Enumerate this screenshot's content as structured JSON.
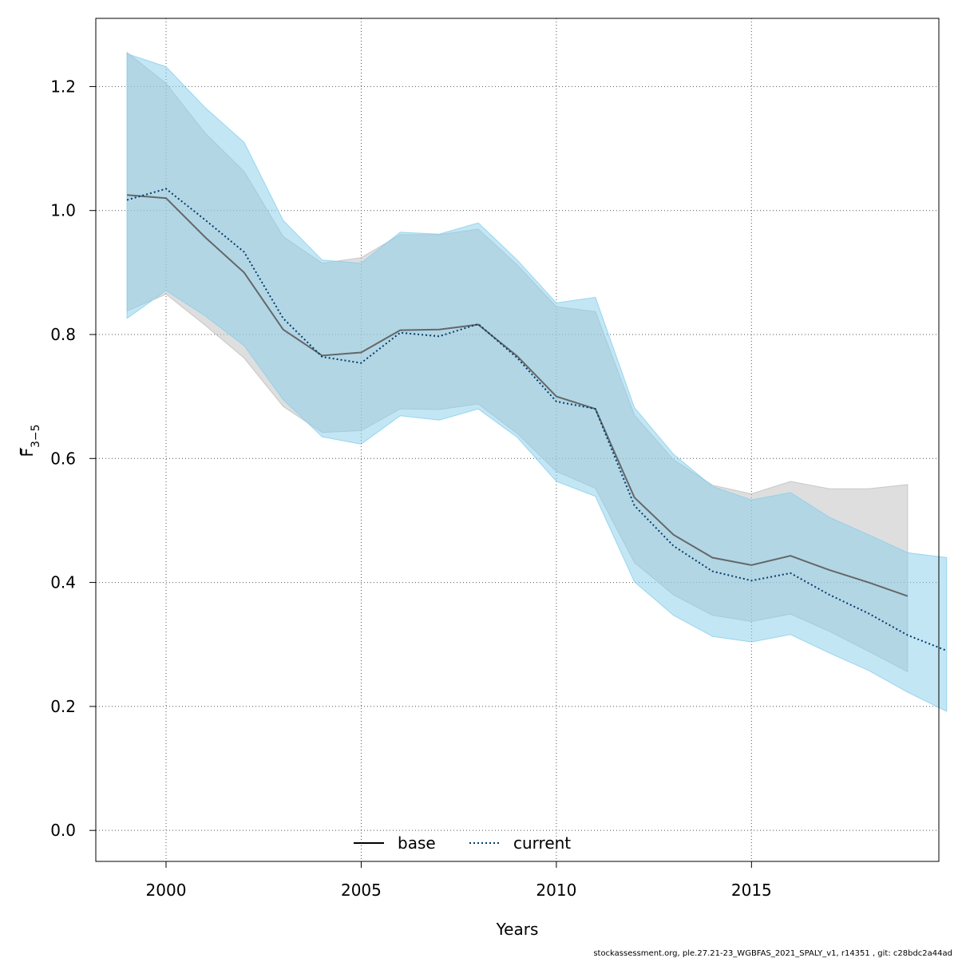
{
  "chart_data": {
    "type": "line",
    "title": "",
    "xlabel": "Years",
    "ylabel": "F",
    "ylabel_bar": "_",
    "ylabel_sub": "3−5",
    "xlim": [
      1998.2,
      2019.8
    ],
    "ylim": [
      -0.05,
      1.31
    ],
    "xticks": [
      2000,
      2005,
      2010,
      2015
    ],
    "yticks": [
      0.0,
      0.2,
      0.4,
      0.6,
      0.8,
      1.0,
      1.2
    ],
    "ytick_labels": [
      "0.0",
      "0.2",
      "0.4",
      "0.6",
      "0.8",
      "1.0",
      "1.2"
    ],
    "grid": true,
    "legend_position": "bottom-center",
    "series": [
      {
        "name": "base",
        "line_style": "solid",
        "line_color": "#555555",
        "band_color": "#bebebe",
        "x": [
          1999,
          2000,
          2001,
          2002,
          2003,
          2004,
          2005,
          2006,
          2007,
          2008,
          2009,
          2010,
          2011,
          2012,
          2013,
          2014,
          2015,
          2016,
          2017,
          2018,
          2019
        ],
        "values": [
          1.025,
          1.02,
          0.957,
          0.9,
          0.808,
          0.766,
          0.771,
          0.807,
          0.808,
          0.816,
          0.765,
          0.7,
          0.68,
          0.537,
          0.477,
          0.44,
          0.428,
          0.443,
          0.42,
          0.4,
          0.378
        ],
        "upper": [
          1.255,
          1.205,
          1.125,
          1.063,
          0.958,
          0.915,
          0.924,
          0.961,
          0.961,
          0.97,
          0.912,
          0.845,
          0.837,
          0.67,
          0.598,
          0.557,
          0.543,
          0.563,
          0.551,
          0.551,
          0.558
        ],
        "lower": [
          0.838,
          0.865,
          0.815,
          0.762,
          0.684,
          0.642,
          0.645,
          0.68,
          0.679,
          0.688,
          0.64,
          0.579,
          0.552,
          0.432,
          0.38,
          0.347,
          0.337,
          0.349,
          0.321,
          0.289,
          0.256
        ]
      },
      {
        "name": "current",
        "line_style": "dotted",
        "line_color": "#003d6b",
        "band_color": "#87ceeb",
        "x": [
          1999,
          2000,
          2001,
          2002,
          2003,
          2004,
          2005,
          2006,
          2007,
          2008,
          2009,
          2010,
          2011,
          2012,
          2013,
          2014,
          2015,
          2016,
          2017,
          2018,
          2019,
          2020
        ],
        "values": [
          1.017,
          1.035,
          0.985,
          0.933,
          0.826,
          0.764,
          0.754,
          0.803,
          0.797,
          0.817,
          0.762,
          0.692,
          0.68,
          0.524,
          0.459,
          0.418,
          0.403,
          0.415,
          0.38,
          0.35,
          0.315,
          0.29
        ],
        "upper": [
          1.253,
          1.232,
          1.166,
          1.11,
          0.984,
          0.92,
          0.915,
          0.965,
          0.962,
          0.98,
          0.92,
          0.851,
          0.86,
          0.682,
          0.607,
          0.555,
          0.533,
          0.545,
          0.505,
          0.477,
          0.448,
          0.44
        ],
        "lower": [
          0.826,
          0.871,
          0.83,
          0.782,
          0.695,
          0.635,
          0.623,
          0.669,
          0.662,
          0.68,
          0.634,
          0.563,
          0.539,
          0.401,
          0.347,
          0.313,
          0.304,
          0.316,
          0.286,
          0.258,
          0.223,
          0.192
        ]
      }
    ]
  },
  "footer": "stockassessment.org, ple.27.21-23_WGBFAS_2021_SPALY_v1, r14351 , git: c28bdc2a44ad"
}
